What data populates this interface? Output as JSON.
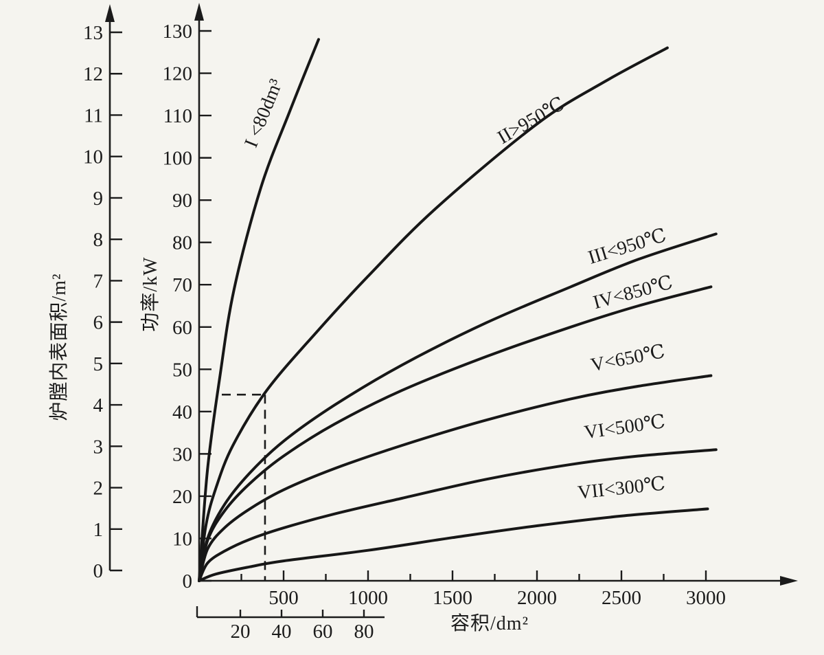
{
  "figure": {
    "background": "#f5f4ef",
    "ink": "#1b1b1b",
    "description": "Scanned textbook chart: furnace power vs. chamber volume for furnace classes I-VII"
  },
  "chart_data": {
    "type": "line",
    "title": "",
    "x_axis": {
      "label": "容积/dm²",
      "range": [
        0,
        3500
      ],
      "major_ticks": [
        500,
        1000,
        1500,
        2000,
        2500,
        3000
      ],
      "minor_ticks": [
        250,
        750,
        1250,
        1750,
        2250,
        2750
      ]
    },
    "x_axis_small": {
      "note": "secondary volume scale used by curve I",
      "ticks": [
        20,
        40,
        60,
        80
      ],
      "range": [
        0,
        90
      ]
    },
    "y_axis_power": {
      "label": "功率/kW",
      "range": [
        0,
        130
      ],
      "ticks": [
        0,
        10,
        20,
        30,
        40,
        50,
        60,
        70,
        80,
        90,
        100,
        110,
        120,
        130
      ]
    },
    "y_axis_area": {
      "label": "炉膛内表面积/m²",
      "range": [
        0,
        13
      ],
      "ticks": [
        0,
        1,
        2,
        3,
        4,
        5,
        6,
        7,
        8,
        9,
        10,
        11,
        12,
        13
      ]
    },
    "reference_point": {
      "volume": 390,
      "power": 44,
      "style": "dashed"
    },
    "legend_position": "labels-along-curves",
    "grid": false,
    "series": [
      {
        "name": "I",
        "label": "I <80dm³",
        "x_scale": "small",
        "points": [
          [
            0,
            0
          ],
          [
            4,
            26
          ],
          [
            10,
            48
          ],
          [
            17,
            69
          ],
          [
            30,
            93
          ],
          [
            44,
            111
          ],
          [
            58,
            128
          ]
        ]
      },
      {
        "name": "II",
        "label": "II>950℃",
        "x_scale": "main",
        "points": [
          [
            0,
            0
          ],
          [
            40,
            13
          ],
          [
            100,
            22
          ],
          [
            200,
            32
          ],
          [
            400,
            45
          ],
          [
            700,
            59
          ],
          [
            1000,
            72
          ],
          [
            1400,
            88
          ],
          [
            2000,
            108
          ],
          [
            2400,
            118
          ],
          [
            2772,
            126
          ]
        ]
      },
      {
        "name": "III",
        "label": "III<950℃",
        "x_scale": "main",
        "points": [
          [
            0,
            0
          ],
          [
            50,
            10
          ],
          [
            150,
            18
          ],
          [
            300,
            25.5
          ],
          [
            500,
            33
          ],
          [
            800,
            41.5
          ],
          [
            1200,
            51
          ],
          [
            1700,
            61
          ],
          [
            2200,
            69.5
          ],
          [
            2600,
            76
          ],
          [
            3060,
            82
          ]
        ]
      },
      {
        "name": "IV",
        "label": "IV<850℃",
        "x_scale": "main",
        "points": [
          [
            0,
            0
          ],
          [
            50,
            9.5
          ],
          [
            150,
            16.5
          ],
          [
            300,
            23
          ],
          [
            500,
            29.5
          ],
          [
            800,
            37
          ],
          [
            1200,
            45
          ],
          [
            1700,
            53
          ],
          [
            2200,
            60
          ],
          [
            2600,
            65
          ],
          [
            3030,
            69.5
          ]
        ]
      },
      {
        "name": "V",
        "label": "V<650℃",
        "x_scale": "main",
        "points": [
          [
            0,
            0
          ],
          [
            50,
            7.5
          ],
          [
            150,
            12.5
          ],
          [
            300,
            17
          ],
          [
            500,
            21.5
          ],
          [
            800,
            26.5
          ],
          [
            1200,
            32
          ],
          [
            1700,
            38
          ],
          [
            2200,
            43
          ],
          [
            2600,
            46
          ],
          [
            3030,
            48.5
          ]
        ]
      },
      {
        "name": "VI",
        "label": "VI<500℃",
        "x_scale": "main",
        "points": [
          [
            0,
            0
          ],
          [
            50,
            4.2
          ],
          [
            150,
            7
          ],
          [
            300,
            9.8
          ],
          [
            500,
            12.5
          ],
          [
            800,
            15.8
          ],
          [
            1200,
            19.5
          ],
          [
            1700,
            24
          ],
          [
            2200,
            27.5
          ],
          [
            2600,
            29.5
          ],
          [
            3060,
            31
          ]
        ]
      },
      {
        "name": "VII",
        "label": "VII<300℃",
        "x_scale": "main",
        "points": [
          [
            0,
            0
          ],
          [
            100,
            1.6
          ],
          [
            300,
            3.3
          ],
          [
            500,
            4.7
          ],
          [
            1000,
            7.2
          ],
          [
            1500,
            10.2
          ],
          [
            2000,
            13
          ],
          [
            2500,
            15.3
          ],
          [
            3010,
            17
          ]
        ]
      }
    ]
  }
}
